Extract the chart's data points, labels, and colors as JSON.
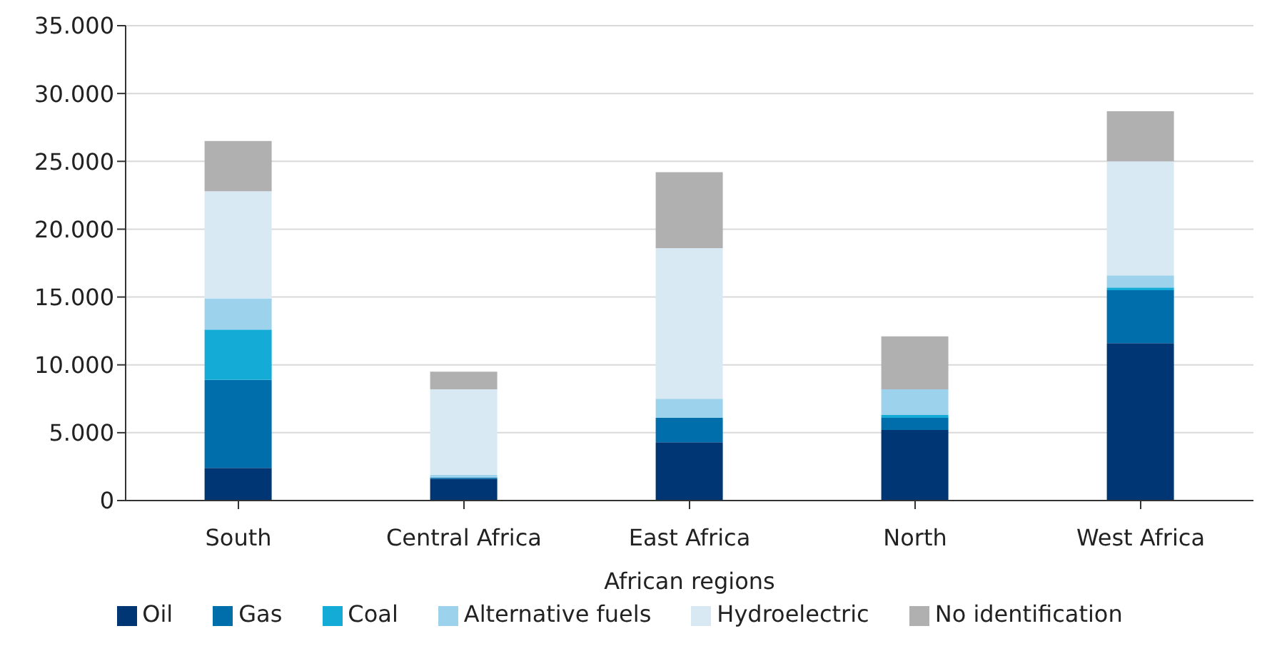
{
  "chart_data": {
    "type": "bar",
    "stacked": true,
    "xlabel": "African regions",
    "categories": [
      "South",
      "Central Africa",
      "East Africa",
      "North",
      "West Africa"
    ],
    "series": [
      {
        "name": "Oil",
        "color": "#003673",
        "values": [
          2400,
          1600,
          4300,
          5200,
          11600
        ]
      },
      {
        "name": "Gas",
        "color": "#006eab",
        "values": [
          6500,
          100,
          1800,
          900,
          3900
        ]
      },
      {
        "name": "Coal",
        "color": "#14acd6",
        "values": [
          3700,
          0,
          0,
          200,
          200
        ]
      },
      {
        "name": "Alternative fuels",
        "color": "#9dd2ec",
        "values": [
          2300,
          200,
          1400,
          1900,
          900
        ]
      },
      {
        "name": "Hydroelectric",
        "color": "#d8e9f3",
        "values": [
          7900,
          6300,
          11100,
          null,
          8400
        ]
      },
      {
        "name": "No identification",
        "color": "#b0b0b0",
        "values": [
          3700,
          1300,
          5600,
          3900,
          3700
        ]
      }
    ],
    "ylim": [
      0,
      35000
    ],
    "yticks": [
      {
        "value": 0,
        "label": "0"
      },
      {
        "value": 5000,
        "label": "5.000"
      },
      {
        "value": 10000,
        "label": "10.000"
      },
      {
        "value": 15000,
        "label": "15.000"
      },
      {
        "value": 20000,
        "label": "20.000"
      },
      {
        "value": 25000,
        "label": "25.000"
      },
      {
        "value": 30000,
        "label": "30.000"
      },
      {
        "value": 35000,
        "label": "35.000"
      }
    ],
    "grid": "y",
    "legend": "bottom"
  }
}
